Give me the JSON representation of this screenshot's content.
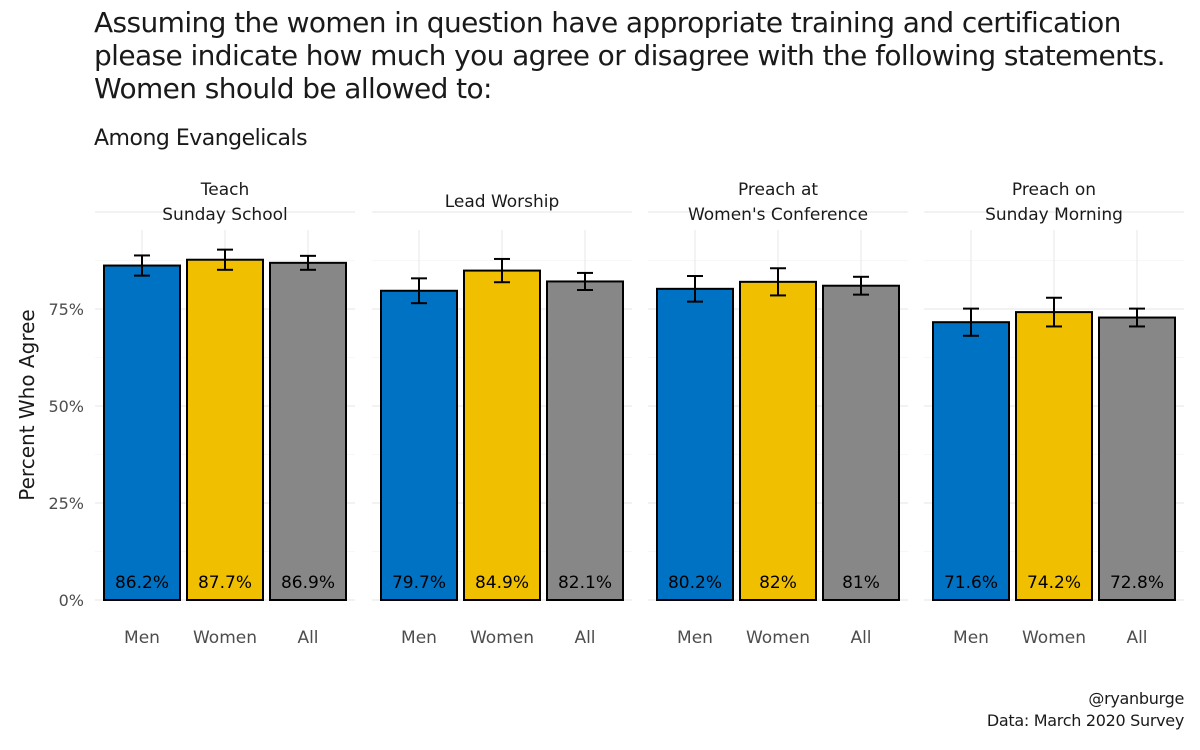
{
  "chart_data": {
    "type": "bar",
    "title": "Assuming the women in question have appropriate training and certification\nplease indicate how much you agree or disagree with the following statements.\nWomen should be allowed to:",
    "subtitle": "Among Evangelicals",
    "ylabel": "Percent Who Agree",
    "xlabel": "",
    "ylim": [
      0,
      100
    ],
    "yticks": [
      0,
      25,
      50,
      75
    ],
    "ytick_labels": [
      "0%",
      "25%",
      "50%",
      "75%"
    ],
    "grid": true,
    "categories": [
      "Men",
      "Women",
      "All"
    ],
    "colors": {
      "Men": "#0072c3",
      "Women": "#f0c000",
      "All": "#878787"
    },
    "panels": [
      {
        "title": "Teach\nSunday School",
        "values": [
          86.2,
          87.7,
          86.9
        ],
        "labels": [
          "86.2%",
          "87.7%",
          "86.9%"
        ],
        "errors": [
          2.6,
          2.6,
          1.8
        ]
      },
      {
        "title": "Lead Worship",
        "values": [
          79.7,
          84.9,
          82.1
        ],
        "labels": [
          "79.7%",
          "84.9%",
          "82.1%"
        ],
        "errors": [
          3.2,
          3.0,
          2.2
        ]
      },
      {
        "title": "Preach at\nWomen's Conference",
        "values": [
          80.2,
          82,
          81
        ],
        "labels": [
          "80.2%",
          "82%",
          "81%"
        ],
        "errors": [
          3.3,
          3.5,
          2.3
        ]
      },
      {
        "title": "Preach on\nSunday Morning",
        "values": [
          71.6,
          74.2,
          72.8
        ],
        "labels": [
          "71.6%",
          "74.2%",
          "72.8%"
        ],
        "errors": [
          3.5,
          3.7,
          2.3
        ]
      }
    ]
  },
  "caption": "@ryanburge\nData: March 2020 Survey"
}
